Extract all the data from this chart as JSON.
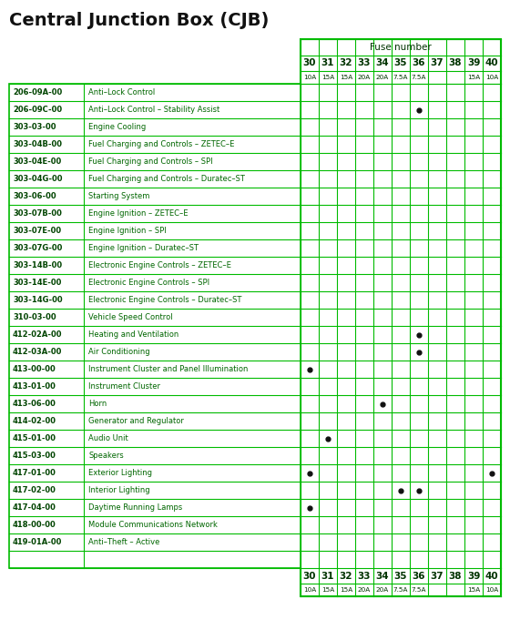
{
  "title": "Central Junction Box (CJB)",
  "fuse_header": "Fuse number",
  "fuse_numbers": [
    "30",
    "31",
    "32",
    "33",
    "34",
    "35",
    "36",
    "37",
    "38",
    "39",
    "40"
  ],
  "fuse_amps": [
    "10A",
    "15A",
    "15A",
    "20A",
    "20A",
    "7.5A",
    "7.5A",
    "",
    "",
    "15A",
    "10A"
  ],
  "rows": [
    {
      "code": "206-09A-00",
      "desc": "Anti–Lock Control",
      "dots": []
    },
    {
      "code": "206-09C-00",
      "desc": "Anti–Lock Control – Stability Assist",
      "dots": [
        6
      ]
    },
    {
      "code": "303-03-00",
      "desc": "Engine Cooling",
      "dots": []
    },
    {
      "code": "303-04B-00",
      "desc": "Fuel Charging and Controls – ZETEC–E",
      "dots": []
    },
    {
      "code": "303-04E-00",
      "desc": "Fuel Charging and Controls – SPI",
      "dots": []
    },
    {
      "code": "303-04G-00",
      "desc": "Fuel Charging and Controls – Duratec–ST",
      "dots": []
    },
    {
      "code": "303-06-00",
      "desc": "Starting System",
      "dots": []
    },
    {
      "code": "303-07B-00",
      "desc": "Engine Ignition – ZETEC–E",
      "dots": []
    },
    {
      "code": "303-07E-00",
      "desc": "Engine Ignition – SPI",
      "dots": []
    },
    {
      "code": "303-07G-00",
      "desc": "Engine Ignition – Duratec–ST",
      "dots": []
    },
    {
      "code": "303-14B-00",
      "desc": "Electronic Engine Controls – ZETEC–E",
      "dots": []
    },
    {
      "code": "303-14E-00",
      "desc": "Electronic Engine Controls – SPI",
      "dots": []
    },
    {
      "code": "303-14G-00",
      "desc": "Electronic Engine Controls – Duratec–ST",
      "dots": []
    },
    {
      "code": "310-03-00",
      "desc": "Vehicle Speed Control",
      "dots": []
    },
    {
      "code": "412-02A-00",
      "desc": "Heating and Ventilation",
      "dots": [
        6
      ]
    },
    {
      "code": "412-03A-00",
      "desc": "Air Conditioning",
      "dots": [
        6
      ]
    },
    {
      "code": "413-00-00",
      "desc": "Instrument Cluster and Panel Illumination",
      "dots": [
        0
      ]
    },
    {
      "code": "413-01-00",
      "desc": "Instrument Cluster",
      "dots": []
    },
    {
      "code": "413-06-00",
      "desc": "Horn",
      "dots": [
        4
      ]
    },
    {
      "code": "414-02-00",
      "desc": "Generator and Regulator",
      "dots": []
    },
    {
      "code": "415-01-00",
      "desc": "Audio Unit",
      "dots": [
        1
      ]
    },
    {
      "code": "415-03-00",
      "desc": "Speakers",
      "dots": []
    },
    {
      "code": "417-01-00",
      "desc": "Exterior Lighting",
      "dots": [
        0,
        10
      ]
    },
    {
      "code": "417-02-00",
      "desc": "Interior Lighting",
      "dots": [
        5,
        6
      ]
    },
    {
      "code": "417-04-00",
      "desc": "Daytime Running Lamps",
      "dots": [
        0
      ]
    },
    {
      "code": "418-00-00",
      "desc": "Module Communications Network",
      "dots": []
    },
    {
      "code": "419-01A-00",
      "desc": "Anti–Theft – Active",
      "dots": []
    },
    {
      "code": "",
      "desc": "",
      "dots": []
    }
  ],
  "bg_color": "#ffffff",
  "grid_color": "#00bb00",
  "text_color_code": "#004400",
  "text_color_desc": "#006600",
  "text_color_fuse": "#003300",
  "title_color": "#111111",
  "dot_color": "#111111"
}
